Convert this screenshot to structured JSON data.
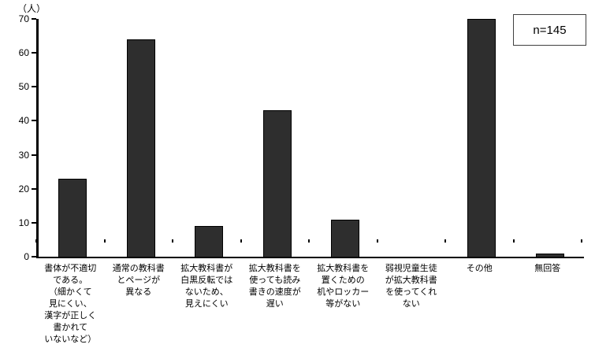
{
  "chart_data": {
    "type": "bar",
    "title": "",
    "unit_label": "（人）",
    "annotation": "n=145",
    "categories": [
      "書体が不適切\nである。\n（細かくて\n見にくい、\n漢字が正しく\n書かれて\nいないなど）",
      "通常の教科書\nとページが\n異なる",
      "拡大教科書が\n白黒反転では\nないため、\n見えにくい",
      "拡大教科書を\n使っても読み\n書きの速度が\n遅い",
      "拡大教科書を\n置くための\n机やロッカー\n等がない",
      "弱視児童生徒\nが拡大教科書\nを使ってくれ\nない",
      "その他",
      "無回答"
    ],
    "values": [
      23,
      64,
      9,
      43,
      11,
      0,
      70,
      1
    ],
    "xlabel": "",
    "ylabel": "（人）",
    "ylim": [
      0,
      70
    ],
    "y_ticks": [
      0,
      10,
      20,
      30,
      40,
      50,
      60,
      70
    ],
    "grid": false,
    "legend": false,
    "bar_color": "#2e2e2e",
    "bar_border_color": "#000000",
    "axis_color": "#000000"
  }
}
